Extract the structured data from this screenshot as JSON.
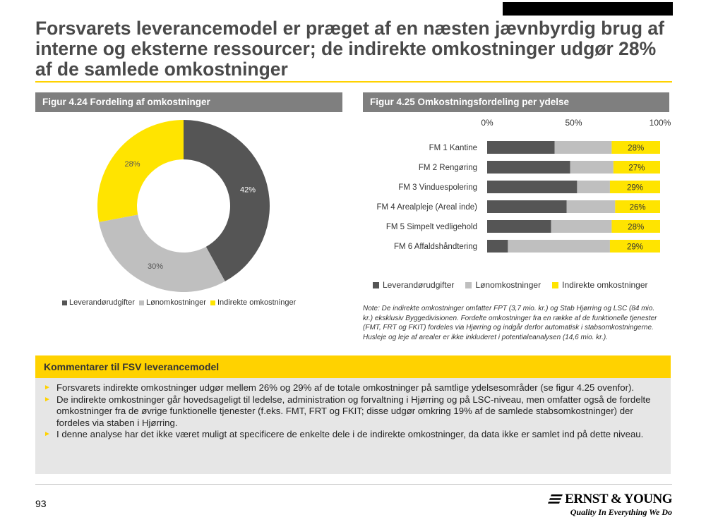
{
  "title": "Forsvarets leverancemodel er præget af en næsten jævnbyrdig brug af interne og eksterne ressourcer; de indirekte omkostninger udgør 28% af de samlede omkostninger",
  "colors": {
    "dark": "#555555",
    "grey": "#bfbfbf",
    "yellow": "#ffe400",
    "header": "#7f7f7f"
  },
  "fig1": {
    "header": "Figur 4.24 Fordeling af omkostninger"
  },
  "fig2": {
    "header": "Figur 4.25 Omkostningsfordeling per ydelse"
  },
  "chart_data": [
    {
      "type": "pie",
      "donut": true,
      "title": "Figur 4.24 Fordeling af omkostninger",
      "slices": [
        {
          "name": "Leverandørudgifter",
          "value": 42,
          "label": "42%"
        },
        {
          "name": "Lønomkostninger",
          "value": 30,
          "label": "30%"
        },
        {
          "name": "Indirekte omkostninger",
          "value": 28,
          "label": "28%"
        }
      ],
      "legend": [
        "Leverandørudgifter",
        "Lønomkostninger",
        "Indirekte omkostninger"
      ],
      "legend_placement": "bottom"
    },
    {
      "type": "bar",
      "orientation": "horizontal",
      "stacked": true,
      "title": "Figur 4.25 Omkostningsfordeling per ydelse",
      "categories": [
        "FM 1 Kantine",
        "FM 2 Rengøring",
        "FM 3 Vinduespolering",
        "FM 4 Arealpleje (Areal inde)",
        "FM 5 Simpelt vedligehold",
        "FM 6 Affaldshåndtering"
      ],
      "series": [
        {
          "name": "Leverandørudgifter",
          "values": [
            39,
            48,
            52,
            46,
            37,
            12
          ]
        },
        {
          "name": "Lønomkostninger",
          "values": [
            33,
            25,
            19,
            28,
            35,
            59
          ]
        },
        {
          "name": "Indirekte omkostninger",
          "values": [
            28,
            27,
            29,
            26,
            28,
            29
          ]
        }
      ],
      "data_labels": [
        "28%",
        "27%",
        "29%",
        "26%",
        "28%",
        "29%"
      ],
      "xticks": [
        "0%",
        "50%",
        "100%"
      ],
      "xlim": [
        0,
        100
      ],
      "legend_placement": "bottom"
    }
  ],
  "note": "Note: De indirekte omkostninger omfatter FPT (3,7 mio. kr.) og Stab Hjørring og LSC (84 mio. kr.) eksklusiv Byggedivisionen. Fordelte omkostninger fra en række af de funktionelle tjenester (FMT, FRT og FKIT) fordeles via Hjørring og indgår derfor automatisk i stabsomkostningerne. Husleje og leje af arealer er ikke inkluderet i potentialeanalysen (14,6 mio. kr.).",
  "comments": {
    "header": "Kommentarer til FSV leverancemodel",
    "items": [
      "Forsvarets indirekte omkostninger udgør mellem 26% og 29% af de totale omkostninger på samtlige ydelsesområder (se figur 4.25 ovenfor).",
      "De indirekte omkostninger går hovedsageligt til ledelse, administration og forvaltning i Hjørring og på LSC-niveau, men omfatter også de fordelte omkostninger fra de øvrige funktionelle tjenester (f.eks. FMT, FRT og FKIT; disse udgør omkring 19% af de samlede stabsomkostninger) der fordeles via staben i Hjørring.",
      "I denne analyse har det ikke været muligt at specificere de enkelte dele i de indirekte omkostninger, da data ikke er samlet ind på dette niveau."
    ]
  },
  "page_number": "93",
  "logo": {
    "name": "ERNST & YOUNG",
    "tagline": "Quality In Everything We Do"
  }
}
